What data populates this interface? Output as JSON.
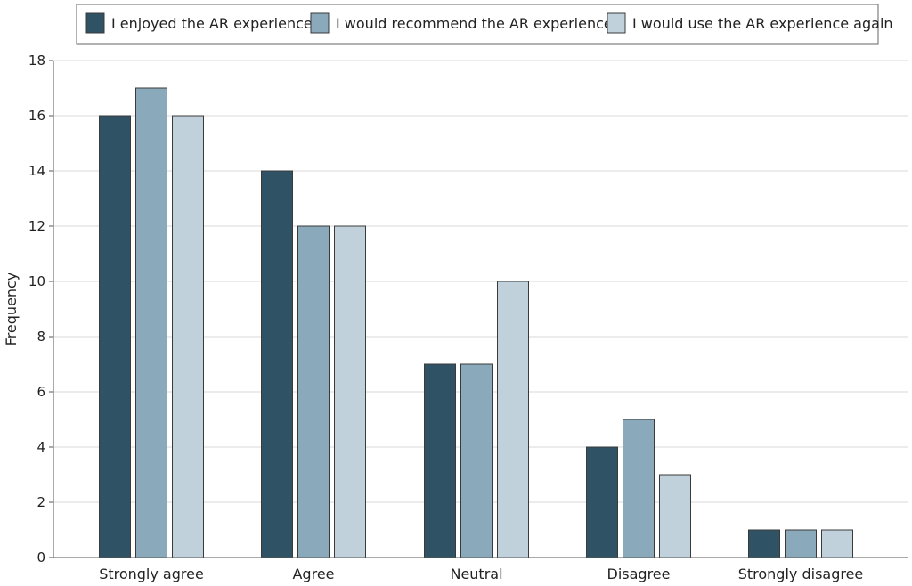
{
  "chart_data": {
    "type": "bar",
    "categories": [
      "Strongly agree",
      "Agree",
      "Neutral",
      "Disagree",
      "Strongly disagree"
    ],
    "series": [
      {
        "name": "I enjoyed the AR experience",
        "values": [
          16,
          14,
          7,
          4,
          1
        ],
        "color": "#2f5364"
      },
      {
        "name": "I would recommend the AR experience",
        "values": [
          17,
          12,
          7,
          5,
          1
        ],
        "color": "#8aaabb"
      },
      {
        "name": "I would use the AR experience again",
        "values": [
          16,
          12,
          10,
          3,
          1
        ],
        "color": "#c0d1dc"
      }
    ],
    "xlabel": "",
    "ylabel": "Frequency",
    "ylim": [
      0,
      18
    ],
    "yticks": [
      0,
      2,
      4,
      6,
      8,
      10,
      12,
      14,
      16,
      18
    ],
    "grid": true,
    "legend_position": "top"
  }
}
